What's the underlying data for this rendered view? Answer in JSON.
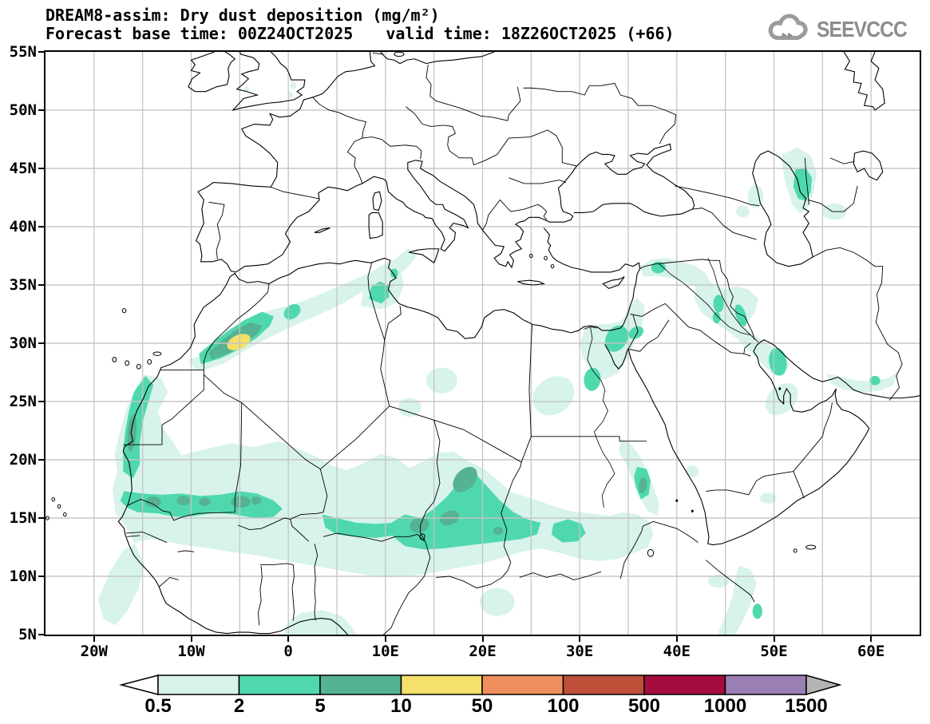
{
  "header": {
    "title": "DREAM8-assim: Dry dust deposition (mg/m²)",
    "forecast_base_label": "Forecast base time:",
    "forecast_base_value": "00Z24OCT2025",
    "valid_label": "valid time:",
    "valid_value": "18Z26OCT2025 (+66)"
  },
  "logo": {
    "name": "SEEVCCC",
    "color": "#8d8d8d"
  },
  "map": {
    "extent": {
      "lon_min": -25,
      "lon_max": 65,
      "lat_min": 5,
      "lat_max": 55
    },
    "grid_interval_deg": 5,
    "lat_ticks": [
      {
        "label": "55N",
        "lat": 55
      },
      {
        "label": "50N",
        "lat": 50
      },
      {
        "label": "45N",
        "lat": 45
      },
      {
        "label": "40N",
        "lat": 40
      },
      {
        "label": "35N",
        "lat": 35
      },
      {
        "label": "30N",
        "lat": 30
      },
      {
        "label": "25N",
        "lat": 25
      },
      {
        "label": "20N",
        "lat": 20
      },
      {
        "label": "15N",
        "lat": 15
      },
      {
        "label": "10N",
        "lat": 10
      },
      {
        "label": "5N",
        "lat": 5
      }
    ],
    "lon_ticks": [
      {
        "label": "20W",
        "lon": -20
      },
      {
        "label": "10W",
        "lon": -10
      },
      {
        "label": "0",
        "lon": 0
      },
      {
        "label": "10E",
        "lon": 10
      },
      {
        "label": "20E",
        "lon": 20
      },
      {
        "label": "30E",
        "lon": 30
      },
      {
        "label": "40E",
        "lon": 40
      },
      {
        "label": "50E",
        "lon": 50
      },
      {
        "label": "60E",
        "lon": 60
      }
    ]
  },
  "colorbar": {
    "labels": [
      "0.5",
      "2",
      "5",
      "10",
      "50",
      "100",
      "500",
      "1000",
      "1500"
    ],
    "segment_colors": [
      "#d7f3eb",
      "#4fd8ae",
      "#55b292",
      "#f4e06a",
      "#ef8f5e",
      "#bd4f38",
      "#a40c3d",
      "#997fb4"
    ],
    "under_color": "#ffffff",
    "over_color": "#b4b4b4"
  },
  "chart_data": {
    "type": "heatmap",
    "title": "DREAM8-assim: Dry dust deposition (mg/m²)",
    "units": "mg/m²",
    "model": "DREAM8-assim",
    "forecast_base_time": "00Z24OCT2025",
    "valid_time": "18Z26OCT2025",
    "lead_time_hours": 66,
    "projection": "equirectangular lat/lon",
    "lon_range": [
      -25,
      65
    ],
    "lat_range": [
      5,
      55
    ],
    "contour_levels_mg_m2": [
      0.5,
      2,
      5,
      10,
      50,
      100,
      500,
      1000,
      1500
    ],
    "level_colors": [
      "#d7f3eb",
      "#4fd8ae",
      "#55b292",
      "#f4e06a",
      "#ef8f5e",
      "#bd4f38",
      "#a40c3d",
      "#997fb4"
    ],
    "grid": true,
    "legend_position": "bottom",
    "regions": [
      {
        "region": "Sahel belt from Senegal/Mauritania across Mali-Niger-Chad to Sudan (~10-20N)",
        "value_range": "0.5-2",
        "notes": "broad light band"
      },
      {
        "region": "Southern Mauritania / Mali band (~15-17.5N, 17W-0E)",
        "value_range": "2-5",
        "cores_5_10_lonlat": [
          [
            -13.9,
            16.4
          ],
          [
            -10.8,
            16.5
          ],
          [
            -8.6,
            16.4
          ],
          [
            -4.9,
            16.4
          ],
          [
            -3.3,
            16.5
          ]
        ]
      },
      {
        "region": "Western Sahara / Mauritania Atlantic coast (19-27N)",
        "value_range": "2-5",
        "cores_5_10_lonlat": [
          [
            -16.1,
            22.3
          ]
        ]
      },
      {
        "region": "Atlas Mountains plume, Morocco/Algeria border (~5W,30N)",
        "value_range": "10-50",
        "notes": "map maximum, yellow core ringed by 5-10"
      },
      {
        "region": "Niger-Chad-Sudan band (10-26E,12-19N)",
        "value_range": "2-5",
        "cores_5_10_lonlat": [
          [
            18.2,
            18.3
          ],
          [
            13.5,
            14.4
          ],
          [
            16.6,
            15.0
          ],
          [
            21.6,
            13.9
          ]
        ]
      },
      {
        "region": "Kordofan, Sudan (27-31E,13-15N)",
        "value_range": "2-5"
      },
      {
        "region": "Sudan Red Sea coast (~36.5E,17-19N)",
        "value_range": "5-10"
      },
      {
        "region": "Tunisia / NE Algeria (8-12E,33-36N)",
        "value_range": "2-5"
      },
      {
        "region": "Sinai-Negev / Suez (33-36E,30-31.5N)",
        "value_range": "2-5"
      },
      {
        "region": "Upper Egypt (~31E,27N)",
        "value_range": "2-5"
      },
      {
        "region": "Turkey-Syria border (~38E,36.5N)",
        "value_range": "2-5"
      },
      {
        "region": "Mesopotamia along Tigris to Persian Gulf (42-51E,28-35N)",
        "value_range": "0.5-2",
        "cores_2_5_lonlat": [
          [
            44.3,
            33.4
          ],
          [
            46.6,
            32.4
          ],
          [
            50.4,
            28.4
          ]
        ]
      },
      {
        "region": "SE Caspian / Turkmenistan (51-54.5E,41.5-47N)",
        "value_range": "2-5"
      },
      {
        "region": "Makran coast, SE Iran (55-63E,26-28N)",
        "value_range": "0.5-2",
        "cores_2_5_lonlat": [
          [
            60.4,
            26.8
          ]
        ]
      },
      {
        "region": "Horn of Africa / Somalia (44-48.5E,5-11N)",
        "value_range": "0.5-2",
        "cores_2_5_lonlat": [
          [
            48.3,
            7.0
          ]
        ]
      },
      {
        "region": "Gulf of Guinea coast (0-7E,5-7N)",
        "value_range": "0.5-2"
      },
      {
        "region": "Atlantic off Guinea (~20W,6-10N)",
        "value_range": "0.5-2"
      }
    ]
  }
}
